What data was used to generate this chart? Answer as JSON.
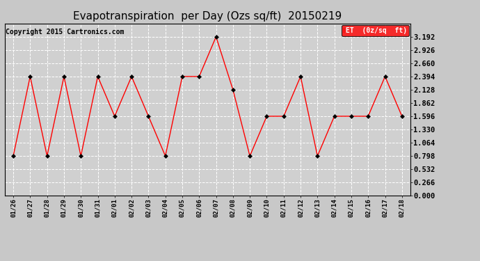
{
  "title": "Evapotranspiration  per Day (Ozs sq/ft)  20150219",
  "copyright": "Copyright 2015 Cartronics.com",
  "legend_label": "ET  (0z/sq  ft)",
  "x_labels": [
    "01/26",
    "01/27",
    "01/28",
    "01/29",
    "01/30",
    "01/31",
    "02/01",
    "02/02",
    "02/03",
    "02/04",
    "02/05",
    "02/06",
    "02/07",
    "02/08",
    "02/09",
    "02/10",
    "02/11",
    "02/12",
    "02/13",
    "02/14",
    "02/15",
    "02/16",
    "02/17",
    "02/18"
  ],
  "y_values": [
    0.798,
    2.394,
    0.798,
    2.394,
    0.798,
    2.394,
    1.596,
    2.394,
    1.596,
    0.798,
    2.394,
    2.394,
    3.192,
    2.128,
    0.798,
    1.596,
    1.596,
    2.394,
    0.798,
    1.596,
    1.596,
    1.596,
    2.394,
    1.596
  ],
  "y_ticks": [
    0.0,
    0.266,
    0.532,
    0.798,
    1.064,
    1.33,
    1.596,
    1.862,
    2.128,
    2.394,
    2.66,
    2.926,
    3.192
  ],
  "ylim": [
    0.0,
    3.458
  ],
  "line_color": "red",
  "marker_color": "black",
  "bg_color": "#c8c8c8",
  "plot_bg": "#d0d0d0",
  "grid_color": "white",
  "title_fontsize": 11,
  "copyright_fontsize": 7,
  "legend_bg": "red",
  "legend_text_color": "white"
}
